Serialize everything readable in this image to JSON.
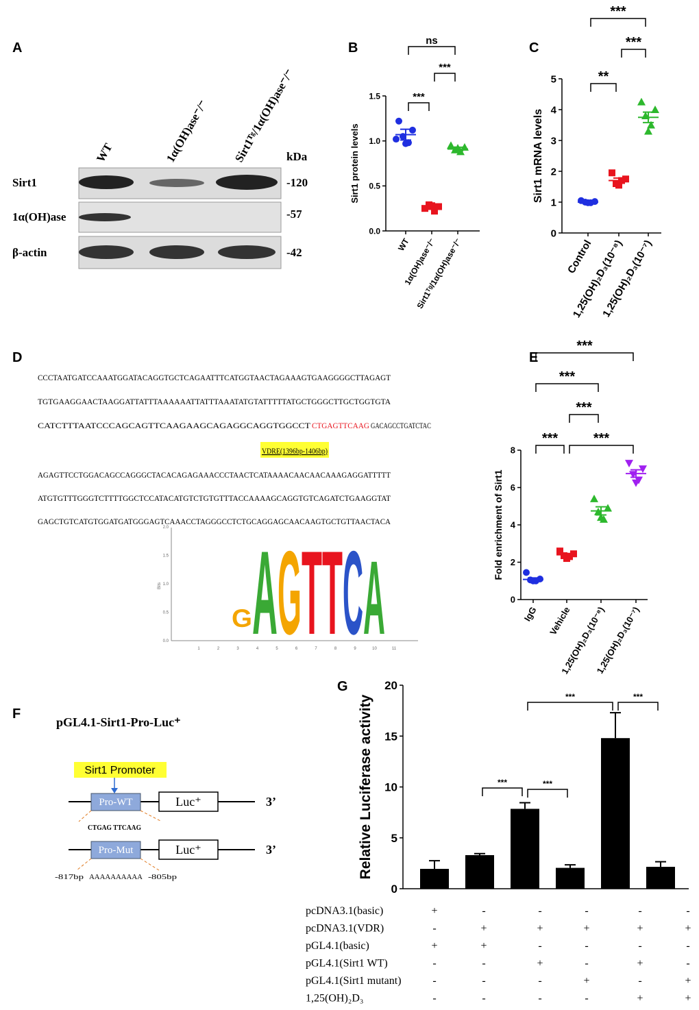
{
  "panel_labels": [
    "A",
    "B",
    "C",
    "D",
    "E",
    "F",
    "G"
  ],
  "blot": {
    "columns": [
      "WT",
      "1α(OH)ase⁻/⁻",
      "Sirt1ᵀᵍ/1α(OH)ase⁻/⁻"
    ],
    "rows": [
      "Sirt1",
      "1α(OH)ase",
      "β-actin"
    ],
    "kda_title": "kDa",
    "kda": [
      "-120",
      "-57",
      "-42"
    ]
  },
  "chart_data": [
    {
      "type": "dot",
      "ylabel": "Sirt1 protein levels",
      "categories": [
        "WT",
        "1α(OH)ase⁻/⁻",
        "Sirt1ᵀᵍ/1α(OH)ase⁻/⁻"
      ],
      "values": [
        [
          1.22,
          1.12,
          1.05,
          0.98,
          0.97,
          1.02
        ],
        [
          0.25,
          0.27,
          0.29,
          0.22,
          0.28
        ],
        [
          0.95,
          0.93,
          0.9,
          0.88,
          0.92
        ]
      ],
      "means": [
        1.07,
        0.26,
        0.91
      ],
      "errors": [
        0.06,
        0.02,
        0.02
      ],
      "colors": [
        "#1f2fe0",
        "#e8141e",
        "#2db82d"
      ],
      "markers": [
        "circle",
        "square",
        "triangle"
      ],
      "ylim": [
        0,
        1.5
      ],
      "yticks": [
        {
          "value": 0,
          "label": "0.0"
        },
        {
          "value": 0.5,
          "label": "0.5"
        },
        {
          "value": 1,
          "label": "1.0"
        },
        {
          "value": 1.5,
          "label": "1.5"
        }
      ],
      "brackets": [
        {
          "from": 0,
          "to": 2,
          "label": "ns"
        },
        {
          "from": 0,
          "to": 1,
          "label": "***"
        },
        {
          "from": 1,
          "to": 2,
          "label": "***"
        }
      ]
    },
    {
      "type": "dot",
      "ylabel": "Sirt1 mRNA levels",
      "categories": [
        "Control",
        "1,25(OH)₂D₃(10⁻⁸)",
        "1,25(OH)₂D₃(10⁻⁷)"
      ],
      "values": [
        [
          1.05,
          1.02,
          1.0,
          0.98,
          0.98
        ],
        [
          1.95,
          1.75,
          1.6,
          1.7,
          1.55
        ],
        [
          4.25,
          4.0,
          3.8,
          3.5,
          3.3
        ]
      ],
      "means": [
        1.0,
        1.7,
        3.75
      ],
      "errors": [
        0.02,
        0.08,
        0.17
      ],
      "colors": [
        "#1f2fe0",
        "#e8141e",
        "#2db82d"
      ],
      "markers": [
        "circle",
        "square",
        "triangle"
      ],
      "ylim": [
        0,
        5
      ],
      "yticks": [
        0,
        1,
        2,
        3,
        4,
        5
      ],
      "brackets": [
        {
          "from": 0,
          "to": 1,
          "label": "**"
        },
        {
          "from": 1,
          "to": 2,
          "label": "***"
        },
        {
          "from": 0,
          "to": 2,
          "label": "***"
        }
      ]
    },
    {
      "type": "dot",
      "ylabel": "Fold enrichment of Sirt1",
      "categories": [
        "IgG",
        "Vehicle",
        "1,25(OH)₂D₃(10⁻⁸)",
        "1,25(OH)₂D₃(10⁻⁷)"
      ],
      "values": [
        [
          1.45,
          1.1,
          1.05,
          1.0,
          1.0
        ],
        [
          2.6,
          2.45,
          2.35,
          2.3,
          2.2
        ],
        [
          5.4,
          4.9,
          4.7,
          4.3,
          4.4
        ],
        [
          7.3,
          7.0,
          6.7,
          6.4,
          6.25
        ]
      ],
      "means": [
        1.08,
        2.4,
        4.75,
        6.75
      ],
      "errors": [
        0.08,
        0.07,
        0.22,
        0.2
      ],
      "colors": [
        "#1f2fe0",
        "#e8141e",
        "#2db82d",
        "#a020f0"
      ],
      "markers": [
        "circle",
        "square",
        "triangle",
        "triangle-down"
      ],
      "ylim": [
        0,
        8
      ],
      "yticks": [
        0,
        2,
        4,
        6,
        8
      ],
      "brackets": [
        {
          "from": 0,
          "to": 3,
          "label": "***"
        },
        {
          "from": 0,
          "to": 2,
          "label": "***"
        },
        {
          "from": 1,
          "to": 2,
          "label": "***"
        },
        {
          "from": 0,
          "to": 1,
          "label": "***"
        },
        {
          "from": 1,
          "to": 3,
          "label": "***"
        }
      ]
    },
    {
      "type": "bar",
      "ylabel": "Relative Luciferase activity",
      "values": [
        1.95,
        3.3,
        7.85,
        2.05,
        14.8,
        2.15
      ],
      "errors": [
        0.8,
        0.15,
        0.6,
        0.3,
        2.5,
        0.5
      ],
      "color": "#000000",
      "ylim": [
        0,
        20
      ],
      "yticks": [
        0,
        5,
        10,
        15,
        20
      ],
      "brackets": [
        {
          "from": 1,
          "to": 2,
          "label": "***"
        },
        {
          "from": 2,
          "to": 3,
          "label": "***"
        },
        {
          "from": 2,
          "to": 4,
          "label": "***"
        },
        {
          "from": 4,
          "to": 5,
          "label": "***"
        }
      ]
    }
  ],
  "sequence": {
    "lines_before": [
      "CCCTAATGATCCAAATGGATACAGGTGCTCAGAATTTCATGGTAACTAGAAAGTGAAGGGGCTTAGAGT",
      "TGTGAAGGAACTAAGGATTATTTAAAAAATTATTTAAATATGTATTTTTATGCTGGGCTTGCTGGTGTA"
    ],
    "motif_line": {
      "before": "CATCTTTAATCCCAGCAGTTCAAGAAGCAGAGGCAGGTGGCCT",
      "motif": "CTGAGTTCAAG",
      "after": "GACAGCCTGATCTAC"
    },
    "vdre_label": "VDRE(1396bp-1406bp)",
    "lines_after": [
      "AGAGTTCCTGGACAGCCAGGGCTACACAGAGAAACCCTAACTCATAAAACAACAACAAAGAGGATTTTT",
      "ATGTGTTTGGGTCTTTTGGCTCCATACATGTCTGTGTTTACCAAAAGCAGGTGTCAGATCTGAAGGTAT",
      "GAGCTGTCATGTGGATGATGGGAGTCAAACCTAGGGCCTCTGCAGGAGCAACAAGTGCTGTTAACTACA"
    ]
  },
  "logo": {
    "ylabel": "Bits",
    "yticks": [
      "0.0",
      "0.5",
      "1.0",
      "1.5",
      "2.0"
    ],
    "xticks": [
      1,
      2,
      3,
      4,
      5,
      6,
      7,
      8,
      9,
      10,
      11
    ],
    "letters": [
      "G",
      "A",
      "G",
      "T",
      "T",
      "C",
      "A"
    ]
  },
  "construct": {
    "title": "pGL4.1-Sirt1-Pro-Luc⁺",
    "promoter_label": "Sirt1 Promoter",
    "wt": {
      "box": "Pro-WT",
      "luc": "Luc⁺",
      "end": "3’",
      "seq": "CTGAG TTCAAG"
    },
    "mut": {
      "box": "Pro-Mut",
      "luc": "Luc⁺",
      "end": "3’",
      "start": "-817bp",
      "seq": "AAAAAAAAAA",
      "stop": "-805bp"
    }
  },
  "luc_table": {
    "rows": [
      {
        "label": "pcDNA3.1(basic)",
        "values": [
          "+",
          "-",
          "-",
          "-",
          "-",
          "-"
        ]
      },
      {
        "label": "pcDNA3.1(VDR)",
        "values": [
          "-",
          "+",
          "+",
          "+",
          "+",
          "+"
        ]
      },
      {
        "label": "pGL4.1(basic)",
        "values": [
          "+",
          "+",
          "-",
          "-",
          "-",
          "-"
        ]
      },
      {
        "label": "pGL4.1(Sirt1 WT)",
        "values": [
          "-",
          "-",
          "+",
          "-",
          "+",
          "-"
        ]
      },
      {
        "label": "pGL4.1(Sirt1 mutant)",
        "values": [
          "-",
          "-",
          "-",
          "+",
          "-",
          "+"
        ]
      },
      {
        "label": "1,25(OH)₂D₃",
        "values": [
          "-",
          "-",
          "-",
          "-",
          "+",
          "+"
        ]
      }
    ]
  }
}
